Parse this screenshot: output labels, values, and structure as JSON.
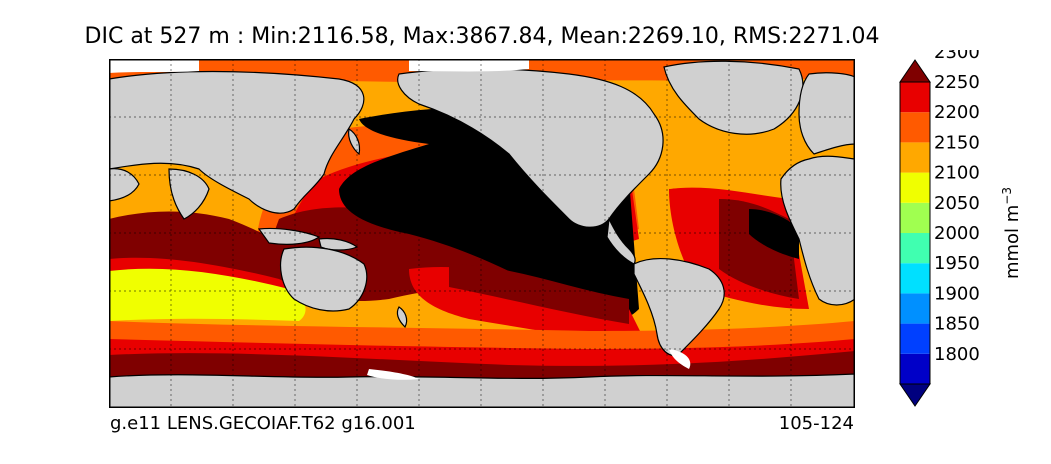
{
  "title": "DIC at 527 m : Min:2116.58, Max:3867.84, Mean:2269.10, RMS:2271.04",
  "footer": {
    "case_name": "g.e11 LENS.GECOIAF.T62 g16.001",
    "years": "105-124"
  },
  "colorbar": {
    "unit_label": "mmol m",
    "unit_exponent": "−3",
    "levels": [
      "1800",
      "1850",
      "1900",
      "1950",
      "2000",
      "2050",
      "2100",
      "2150",
      "2200",
      "2250",
      "2300"
    ],
    "colors": [
      "#00007f",
      "#0000c8",
      "#0040ff",
      "#0090ff",
      "#00e0ff",
      "#40ffb0",
      "#a0ff50",
      "#f0ff00",
      "#ffa800",
      "#ff5a00",
      "#e80000",
      "#7f0000"
    ],
    "extend": "both"
  },
  "map": {
    "projection": "cylindrical",
    "land_color": "#d0d0d0",
    "grid": "dashed"
  }
}
